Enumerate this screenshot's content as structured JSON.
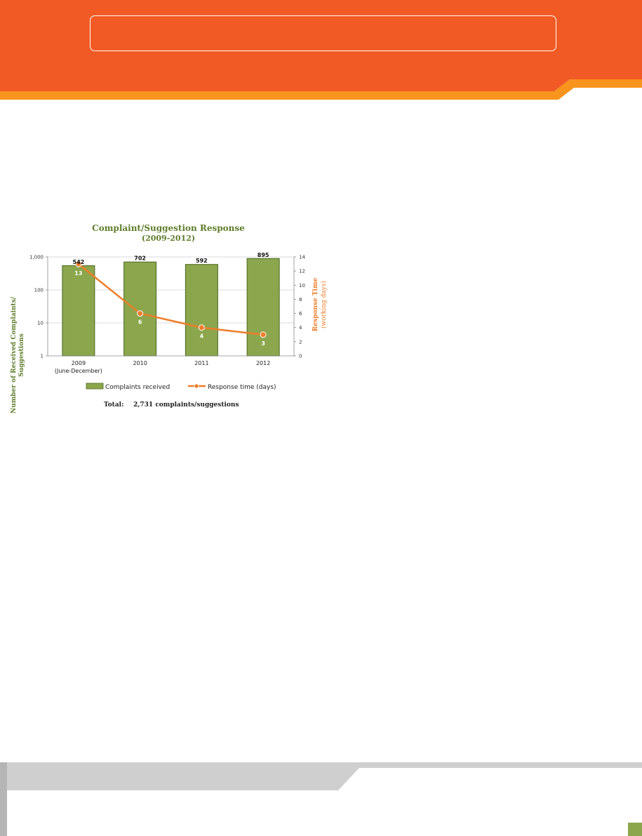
{
  "colors": {
    "header": "#f15a24",
    "header_accent": "#f7941d",
    "bar": "#8ba64d",
    "bar_stroke": "#4d6620",
    "line": "#ee7d2a",
    "title": "#5e7d2a",
    "footer": "#cfcfcf",
    "footer_tab": "#8ba64d"
  },
  "chart_data": {
    "type": "bar",
    "title": "Complaint/Suggestion Response",
    "subtitle": "(2009-2012)",
    "categories": [
      {
        "line1": "2009",
        "line2": "(June-December)"
      },
      {
        "line1": "2010",
        "line2": ""
      },
      {
        "line1": "2011",
        "line2": ""
      },
      {
        "line1": "2012",
        "line2": ""
      }
    ],
    "series": [
      {
        "name": "Complaints received",
        "type": "bar",
        "axis": "left",
        "values": [
          542,
          702,
          592,
          895
        ]
      },
      {
        "name": "Response time (days)",
        "type": "line",
        "axis": "right",
        "values": [
          13,
          6,
          4,
          3
        ]
      }
    ],
    "left_axis": {
      "label_line1": "Number of Received Complaints/",
      "label_line2": "Suggestions",
      "scale": "log",
      "range": [
        1,
        1000
      ],
      "ticks": [
        "1",
        "10",
        "100",
        "1,000"
      ]
    },
    "right_axis": {
      "label_line1": "Response Time",
      "label_line2": "(working days)",
      "scale": "linear",
      "range": [
        0,
        14
      ],
      "ticks": [
        "0",
        "2",
        "4",
        "6",
        "8",
        "10",
        "12",
        "14"
      ]
    },
    "grid": true,
    "legend_position": "bottom",
    "total": {
      "label": "Total:",
      "text": "2,731 complaints/suggestions"
    }
  }
}
